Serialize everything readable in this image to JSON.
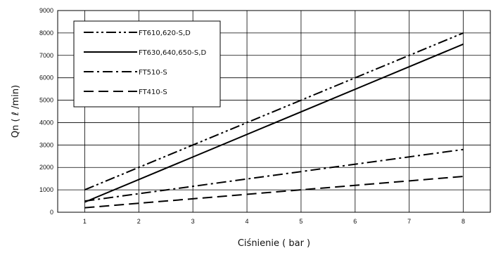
{
  "chart_data": {
    "type": "line",
    "xlabel": "Ciśnienie ( bar )",
    "ylabel": "Qn ( ℓ /min)",
    "xlim": [
      0.5,
      8.5
    ],
    "ylim": [
      0,
      9000
    ],
    "x_ticks": [
      1,
      2,
      3,
      4,
      5,
      6,
      7,
      8
    ],
    "y_ticks": [
      0,
      1000,
      2000,
      3000,
      4000,
      5000,
      6000,
      7000,
      8000,
      9000
    ],
    "grid": true,
    "legend_position": "top-left",
    "series": [
      {
        "name": "FT610,620-S,D",
        "style": "dash-dot-dot",
        "x": [
          1,
          8
        ],
        "y": [
          1000,
          8000
        ]
      },
      {
        "name": "FT630,640,650-S,D",
        "style": "solid",
        "x": [
          1,
          8
        ],
        "y": [
          450,
          7500
        ]
      },
      {
        "name": "FT510-S",
        "style": "dash-dot",
        "x": [
          1,
          8
        ],
        "y": [
          500,
          2800
        ]
      },
      {
        "name": "FT410-S",
        "style": "dashed",
        "x": [
          1,
          8
        ],
        "y": [
          200,
          1600
        ]
      }
    ]
  }
}
